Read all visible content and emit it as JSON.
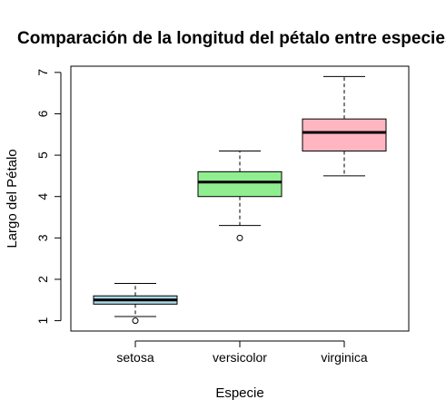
{
  "chart_data": {
    "type": "boxplot",
    "title": "Comparación de la longitud del pétalo entre especies",
    "xlabel": "Especie",
    "ylabel": "Largo del Pétalo",
    "ylim": [
      0.75,
      7.15
    ],
    "yticks": [
      1,
      2,
      3,
      4,
      5,
      6,
      7
    ],
    "grid": false,
    "legend": "none",
    "categories": [
      "setosa",
      "versicolor",
      "virginica"
    ],
    "boxes": [
      {
        "category": "setosa",
        "fill": "#add8e6",
        "whisker_low": 1.1,
        "q1": 1.4,
        "median": 1.5,
        "q3": 1.6,
        "whisker_high": 1.9,
        "outliers": [
          1.0
        ]
      },
      {
        "category": "versicolor",
        "fill": "#90ee90",
        "whisker_low": 3.3,
        "q1": 4.0,
        "median": 4.35,
        "q3": 4.6,
        "whisker_high": 5.1,
        "outliers": [
          3.0
        ]
      },
      {
        "category": "virginica",
        "fill": "#ffb6c1",
        "whisker_low": 4.5,
        "q1": 5.1,
        "median": 5.55,
        "q3": 5.875,
        "whisker_high": 6.9,
        "outliers": []
      }
    ]
  }
}
